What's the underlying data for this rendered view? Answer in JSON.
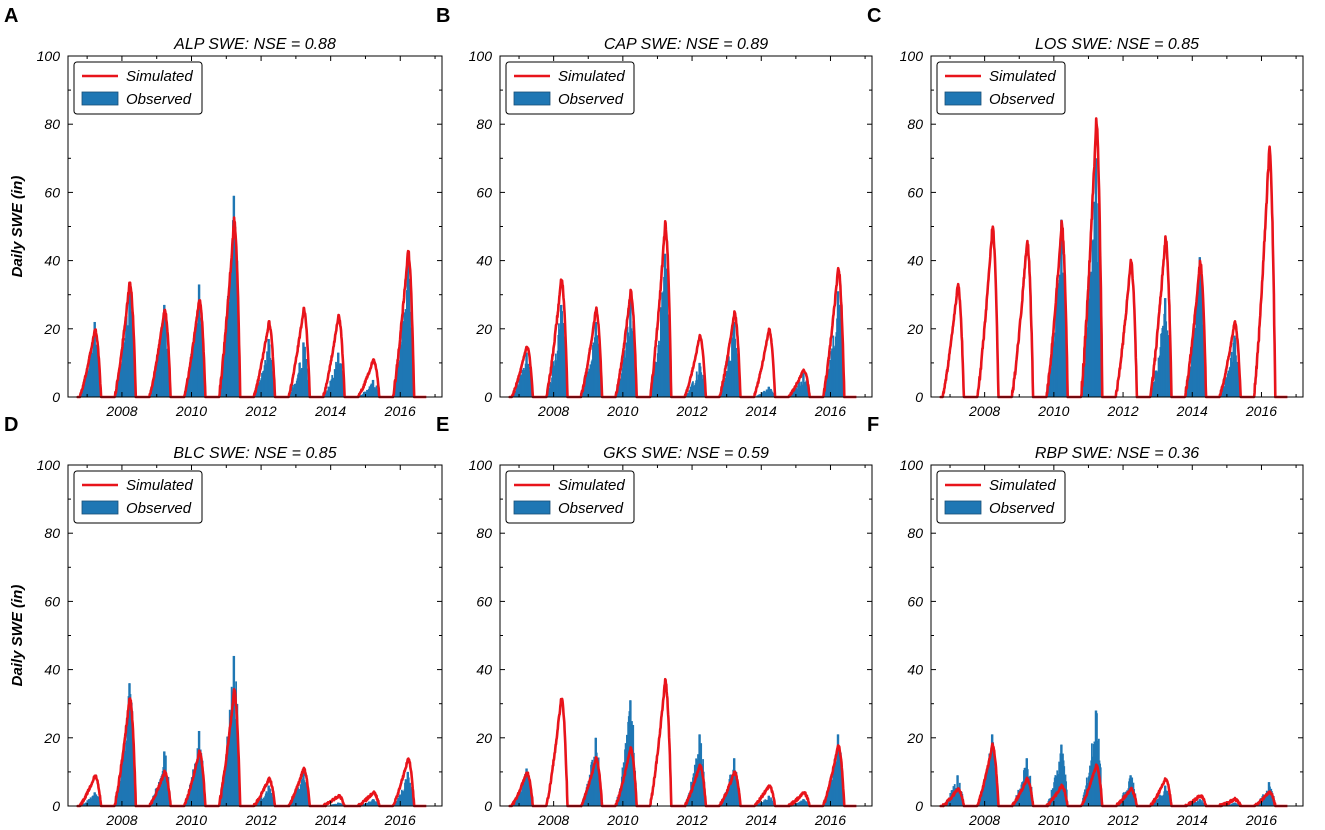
{
  "figure": {
    "ylabel": "Daily SWE (in)",
    "legend": {
      "simulated": "Simulated",
      "observed": "Observed",
      "placement": "top-left"
    },
    "colors": {
      "simulated": "#e8141b",
      "observed": "#1f77b4",
      "axis": "#000000"
    },
    "yticks": [
      0,
      20,
      40,
      60,
      80,
      100
    ],
    "xticks": [
      2008,
      2010,
      2012,
      2014,
      2016
    ],
    "xlim": [
      2006.45,
      2017.2
    ],
    "ylim": [
      0,
      100
    ]
  },
  "chart_data": [
    {
      "type": "line+bar",
      "letter": "A",
      "title": "ALP SWE: NSE = 0.88",
      "seasons": [
        {
          "year": 2007,
          "sim_peak": 20,
          "obs_peak": 22,
          "has_obs": true
        },
        {
          "year": 2008,
          "sim_peak": 34,
          "obs_peak": 32,
          "has_obs": true
        },
        {
          "year": 2009,
          "sim_peak": 26,
          "obs_peak": 27,
          "has_obs": true
        },
        {
          "year": 2010,
          "sim_peak": 29,
          "obs_peak": 33,
          "has_obs": true
        },
        {
          "year": 2011,
          "sim_peak": 52,
          "obs_peak": 59,
          "has_obs": true
        },
        {
          "year": 2012,
          "sim_peak": 22,
          "obs_peak": 17,
          "has_obs": true
        },
        {
          "year": 2013,
          "sim_peak": 26,
          "obs_peak": 16,
          "has_obs": true
        },
        {
          "year": 2014,
          "sim_peak": 24,
          "obs_peak": 13,
          "has_obs": true
        },
        {
          "year": 2015,
          "sim_peak": 11,
          "obs_peak": 5,
          "has_obs": true
        },
        {
          "year": 2016,
          "sim_peak": 43,
          "obs_peak": 40,
          "has_obs": true
        }
      ]
    },
    {
      "type": "line+bar",
      "letter": "B",
      "title": "CAP SWE: NSE = 0.89",
      "seasons": [
        {
          "year": 2007,
          "sim_peak": 15,
          "obs_peak": 13,
          "has_obs": true
        },
        {
          "year": 2008,
          "sim_peak": 35,
          "obs_peak": 27,
          "has_obs": true
        },
        {
          "year": 2009,
          "sim_peak": 26,
          "obs_peak": 22,
          "has_obs": true
        },
        {
          "year": 2010,
          "sim_peak": 31,
          "obs_peak": 29,
          "has_obs": true
        },
        {
          "year": 2011,
          "sim_peak": 51,
          "obs_peak": 42,
          "has_obs": true
        },
        {
          "year": 2012,
          "sim_peak": 18,
          "obs_peak": 10,
          "has_obs": true
        },
        {
          "year": 2013,
          "sim_peak": 25,
          "obs_peak": 22,
          "has_obs": true
        },
        {
          "year": 2014,
          "sim_peak": 20,
          "obs_peak": 3,
          "has_obs": true
        },
        {
          "year": 2015,
          "sim_peak": 8,
          "obs_peak": 7,
          "has_obs": true
        },
        {
          "year": 2016,
          "sim_peak": 38,
          "obs_peak": 31,
          "has_obs": true
        }
      ]
    },
    {
      "type": "line+bar",
      "letter": "C",
      "title": "LOS SWE: NSE = 0.85",
      "seasons": [
        {
          "year": 2007,
          "sim_peak": 33,
          "obs_peak": 0,
          "has_obs": false
        },
        {
          "year": 2008,
          "sim_peak": 50,
          "obs_peak": 0,
          "has_obs": false
        },
        {
          "year": 2009,
          "sim_peak": 46,
          "obs_peak": 0,
          "has_obs": false
        },
        {
          "year": 2010,
          "sim_peak": 51,
          "obs_peak": 52,
          "has_obs": true
        },
        {
          "year": 2011,
          "sim_peak": 81,
          "obs_peak": 70,
          "has_obs": true
        },
        {
          "year": 2012,
          "sim_peak": 40,
          "obs_peak": 0,
          "has_obs": false
        },
        {
          "year": 2013,
          "sim_peak": 47,
          "obs_peak": 29,
          "has_obs": true
        },
        {
          "year": 2014,
          "sim_peak": 40,
          "obs_peak": 41,
          "has_obs": true
        },
        {
          "year": 2015,
          "sim_peak": 22,
          "obs_peak": 18,
          "has_obs": true
        },
        {
          "year": 2016,
          "sim_peak": 73,
          "obs_peak": 0,
          "has_obs": false
        }
      ]
    },
    {
      "type": "line+bar",
      "letter": "D",
      "title": "BLC SWE: NSE = 0.85",
      "seasons": [
        {
          "year": 2007,
          "sim_peak": 9,
          "obs_peak": 4,
          "has_obs": true
        },
        {
          "year": 2008,
          "sim_peak": 32,
          "obs_peak": 36,
          "has_obs": true
        },
        {
          "year": 2009,
          "sim_peak": 10,
          "obs_peak": 16,
          "has_obs": true
        },
        {
          "year": 2010,
          "sim_peak": 16,
          "obs_peak": 22,
          "has_obs": true
        },
        {
          "year": 2011,
          "sim_peak": 34,
          "obs_peak": 44,
          "has_obs": true
        },
        {
          "year": 2012,
          "sim_peak": 8,
          "obs_peak": 6,
          "has_obs": true
        },
        {
          "year": 2013,
          "sim_peak": 11,
          "obs_peak": 10,
          "has_obs": true
        },
        {
          "year": 2014,
          "sim_peak": 3,
          "obs_peak": 1,
          "has_obs": true
        },
        {
          "year": 2015,
          "sim_peak": 4,
          "obs_peak": 2,
          "has_obs": true
        },
        {
          "year": 2016,
          "sim_peak": 14,
          "obs_peak": 10,
          "has_obs": true
        }
      ]
    },
    {
      "type": "line+bar",
      "letter": "E",
      "title": "GKS SWE: NSE = 0.59",
      "seasons": [
        {
          "year": 2007,
          "sim_peak": 10,
          "obs_peak": 11,
          "has_obs": true
        },
        {
          "year": 2008,
          "sim_peak": 32,
          "obs_peak": 0,
          "has_obs": false
        },
        {
          "year": 2009,
          "sim_peak": 14,
          "obs_peak": 20,
          "has_obs": true
        },
        {
          "year": 2010,
          "sim_peak": 17,
          "obs_peak": 31,
          "has_obs": true
        },
        {
          "year": 2011,
          "sim_peak": 37,
          "obs_peak": 0,
          "has_obs": false
        },
        {
          "year": 2012,
          "sim_peak": 12,
          "obs_peak": 21,
          "has_obs": true
        },
        {
          "year": 2013,
          "sim_peak": 10,
          "obs_peak": 14,
          "has_obs": true
        },
        {
          "year": 2014,
          "sim_peak": 6,
          "obs_peak": 3,
          "has_obs": true
        },
        {
          "year": 2015,
          "sim_peak": 4,
          "obs_peak": 2,
          "has_obs": true
        },
        {
          "year": 2016,
          "sim_peak": 18,
          "obs_peak": 21,
          "has_obs": true
        }
      ]
    },
    {
      "type": "line+bar",
      "letter": "F",
      "title": "RBP SWE: NSE = 0.36",
      "seasons": [
        {
          "year": 2007,
          "sim_peak": 5,
          "obs_peak": 9,
          "has_obs": true
        },
        {
          "year": 2008,
          "sim_peak": 18,
          "obs_peak": 21,
          "has_obs": true
        },
        {
          "year": 2009,
          "sim_peak": 8,
          "obs_peak": 14,
          "has_obs": true
        },
        {
          "year": 2010,
          "sim_peak": 6,
          "obs_peak": 18,
          "has_obs": true
        },
        {
          "year": 2011,
          "sim_peak": 12,
          "obs_peak": 28,
          "has_obs": true
        },
        {
          "year": 2012,
          "sim_peak": 5,
          "obs_peak": 9,
          "has_obs": true
        },
        {
          "year": 2013,
          "sim_peak": 8,
          "obs_peak": 6,
          "has_obs": true
        },
        {
          "year": 2014,
          "sim_peak": 3,
          "obs_peak": 2,
          "has_obs": true
        },
        {
          "year": 2015,
          "sim_peak": 2,
          "obs_peak": 1,
          "has_obs": true
        },
        {
          "year": 2016,
          "sim_peak": 4,
          "obs_peak": 7,
          "has_obs": true
        }
      ]
    }
  ]
}
